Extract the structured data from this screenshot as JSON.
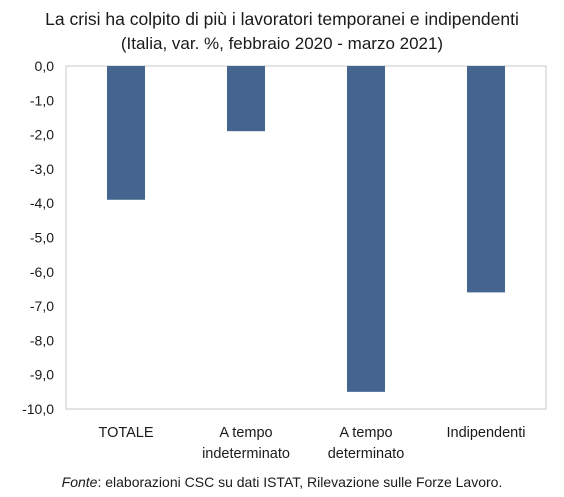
{
  "chart_data": {
    "type": "bar",
    "title": "La crisi ha colpito di più i lavoratori temporanei e indipendenti",
    "subtitle": "(Italia, var. %, febbraio 2020 - marzo 2021)",
    "categories": [
      [
        "TOTALE"
      ],
      [
        "A tempo",
        "indeterminato"
      ],
      [
        "A tempo",
        "determinato"
      ],
      [
        "Indipendenti"
      ]
    ],
    "values": [
      -3.9,
      -1.9,
      -9.5,
      -6.6
    ],
    "ylim": [
      -10,
      0
    ],
    "yticks": [
      "0,0",
      "-1,0",
      "-2,0",
      "-3,0",
      "-4,0",
      "-5,0",
      "-6,0",
      "-7,0",
      "-8,0",
      "-9,0",
      "-10,0"
    ],
    "grid": false,
    "bar_color": "#44658f"
  },
  "footnote": {
    "source_label": "Fonte",
    "text": ": elaborazioni CSC su dati ISTAT, Rilevazione sulle Forze Lavoro."
  }
}
